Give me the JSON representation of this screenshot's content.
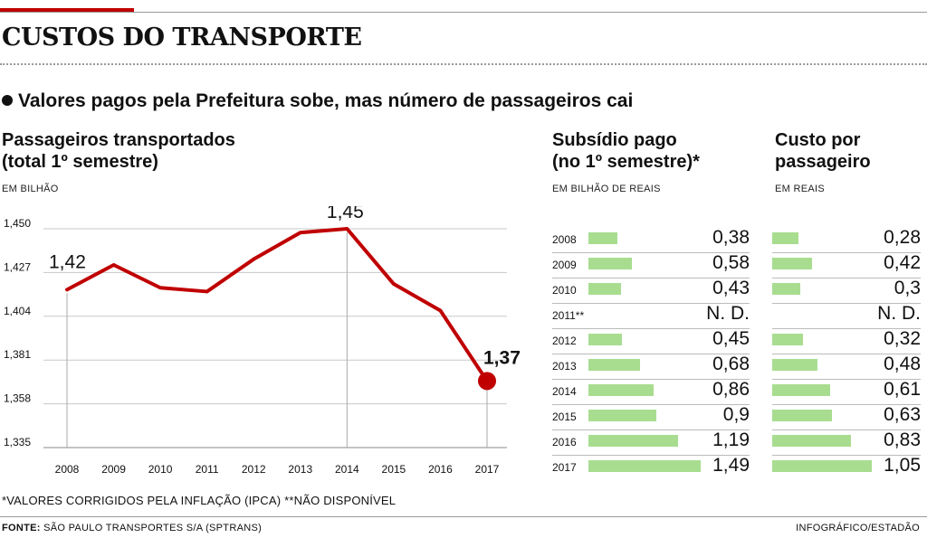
{
  "header": {
    "title": "CUSTOS DO TRANSPORTE",
    "subtitle": "Valores pagos pela Prefeitura sobe, mas número de passageiros cai"
  },
  "colors": {
    "accent_red": "#c00000",
    "line_red": "#c00000",
    "bar_green": "#a8dd90"
  },
  "chart_data": [
    {
      "type": "line",
      "title_line1": "Passageiros transportados",
      "title_line2": "(total 1º semestre)",
      "unit": "EM BILHÃO",
      "x": [
        "2008",
        "2009",
        "2010",
        "2011",
        "2012",
        "2013",
        "2014",
        "2015",
        "2016",
        "2017"
      ],
      "series": [
        {
          "values": [
            1.418,
            1.431,
            1.419,
            1.417,
            1.434,
            1.448,
            1.45,
            1.421,
            1.407,
            1.37
          ]
        }
      ],
      "yticks": [
        "1,450",
        "1,427",
        "1,404",
        "1,381",
        "1,358",
        "1,335"
      ],
      "ylim": [
        1.335,
        1.45
      ],
      "annotations": [
        {
          "x": "2008",
          "text": "1,42"
        },
        {
          "x": "2014",
          "text": "1,45"
        },
        {
          "x": "2017",
          "text": "1,37"
        }
      ],
      "grid": true
    },
    {
      "type": "bar",
      "orientation": "horizontal",
      "title_line1": "Subsídio pago",
      "title_line2": "(no 1º semestre)*",
      "unit": "EM BILHÃO DE REAIS",
      "categories": [
        "2008",
        "2009",
        "2010",
        "2011**",
        "2012",
        "2013",
        "2014",
        "2015",
        "2016",
        "2017"
      ],
      "values": [
        0.38,
        0.58,
        0.43,
        null,
        0.45,
        0.68,
        0.86,
        0.9,
        1.19,
        1.49
      ],
      "labels": [
        "0,38",
        "0,58",
        "0,43",
        "N. D.",
        "0,45",
        "0,68",
        "0,86",
        "0,9",
        "1,19",
        "1,49"
      ],
      "xlim": [
        0,
        1.49
      ]
    },
    {
      "type": "bar",
      "orientation": "horizontal",
      "title_line1": "Custo por",
      "title_line2": "passageiro",
      "unit": "EM REAIS",
      "categories": [
        "2008",
        "2009",
        "2010",
        "2011",
        "2012",
        "2013",
        "2014",
        "2015",
        "2016",
        "2017"
      ],
      "values": [
        0.28,
        0.42,
        0.3,
        null,
        0.32,
        0.48,
        0.61,
        0.63,
        0.83,
        1.05
      ],
      "labels": [
        "0,28",
        "0,42",
        "0,3",
        "N. D.",
        "0,32",
        "0,48",
        "0,61",
        "0,63",
        "0,83",
        "1,05"
      ],
      "xlim": [
        0,
        1.05
      ]
    }
  ],
  "footer": {
    "footnote": "*VALORES CORRIGIDOS PELA INFLAÇÃO (IPCA) **NÃO DISPONÍVEL",
    "source_label": "FONTE:",
    "source_text": "SÃO PAULO TRANSPORTES S/A (SPTRANS)",
    "credit": "INFOGRÁFICO/ESTADÃO"
  }
}
